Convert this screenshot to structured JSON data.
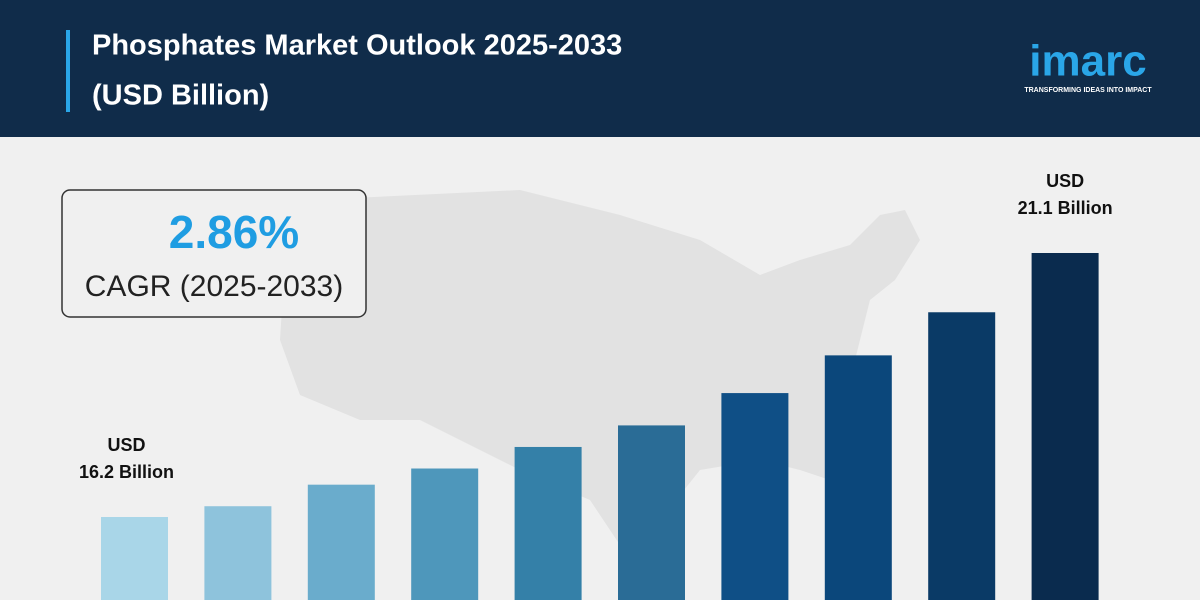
{
  "chart_data": {
    "type": "bar",
    "title": "Phosphates Market Outlook 2025-2033",
    "subtitle": "(USD Billion)",
    "values": [
      16.2,
      16.4,
      16.8,
      17.1,
      17.5,
      17.9,
      18.5,
      19.2,
      20.0,
      21.1
    ],
    "value_labels": [
      "16.2 Billion",
      null,
      null,
      null,
      null,
      null,
      null,
      null,
      null,
      "21.1 Billion"
    ],
    "value_label_prefix": "USD",
    "colors": [
      "#a9d6e8",
      "#8ec3dc",
      "#6aaccc",
      "#4e97bb",
      "#3480a8",
      "#2a6c96",
      "#0f4f86",
      "#0b477b",
      "#0a3a66",
      "#0a2b4e"
    ],
    "cagr": "2.86%",
    "cagr_label": "CAGR (2025-2033)"
  },
  "logo": {
    "name": "imarc",
    "tagline": "TRANSFORMING IDEAS INTO IMPACT"
  }
}
